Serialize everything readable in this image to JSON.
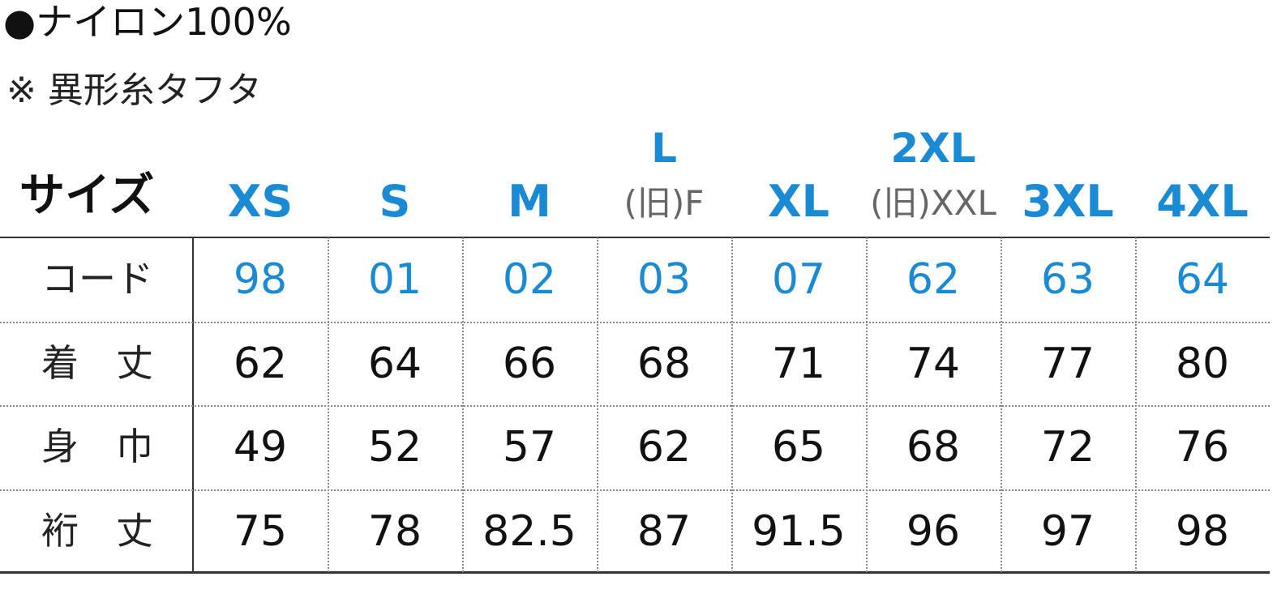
{
  "header": {
    "material": "●ナイロン100%",
    "note": "※ 異形糸タフタ"
  },
  "table": {
    "corner": "サイズ",
    "columns": [
      {
        "size": "XS"
      },
      {
        "size": "S"
      },
      {
        "size": "M"
      },
      {
        "size": "L",
        "old": "(旧)F"
      },
      {
        "size": "XL"
      },
      {
        "size": "2XL",
        "old": "(旧)XXL"
      },
      {
        "size": "3XL"
      },
      {
        "size": "4XL"
      }
    ],
    "rows": [
      {
        "label": "コード",
        "cells": [
          "98",
          "01",
          "02",
          "03",
          "07",
          "62",
          "63",
          "64"
        ]
      },
      {
        "label": "着　丈",
        "cells": [
          62,
          64,
          66,
          68,
          71,
          74,
          77,
          80
        ]
      },
      {
        "label": "身　巾",
        "cells": [
          49,
          52,
          57,
          62,
          65,
          68,
          72,
          76
        ]
      },
      {
        "label": "裄　丈",
        "cells": [
          75,
          78,
          82.5,
          87,
          91.5,
          96,
          97,
          98
        ]
      }
    ]
  }
}
